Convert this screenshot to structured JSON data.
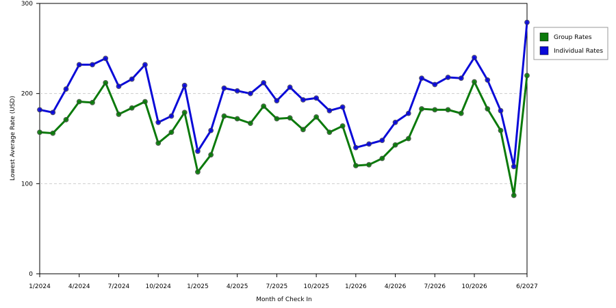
{
  "chart_data": {
    "type": "line",
    "x_label": "Month of Check In",
    "y_label": "Lowest Average Rate (USD)",
    "categories": [
      "1/2024",
      null,
      null,
      "4/2024",
      null,
      null,
      "7/2024",
      null,
      null,
      "10/2024",
      null,
      null,
      "1/2025",
      null,
      null,
      "4/2025",
      null,
      null,
      "7/2025",
      null,
      null,
      "10/2025",
      null,
      null,
      "1/2026",
      null,
      null,
      "4/2026",
      null,
      null,
      "7/2026",
      null,
      null,
      "10/2026",
      null,
      null,
      null,
      "6/2027"
    ],
    "series": [
      {
        "name": "Group Rates",
        "color": "#0b7a0b",
        "values": [
          157,
          156,
          171,
          191,
          190,
          212,
          177,
          184,
          191,
          145,
          157,
          179,
          113,
          132,
          175,
          172,
          167,
          186,
          172,
          173,
          160,
          174,
          157,
          164,
          120,
          121,
          128,
          143,
          150,
          183,
          182,
          182,
          178,
          213,
          183,
          159,
          87,
          220
        ]
      },
      {
        "name": "Individual Rates",
        "color": "#0a0ad8",
        "values": [
          182,
          179,
          205,
          232,
          232,
          239,
          208,
          216,
          232,
          168,
          175,
          209,
          136,
          159,
          206,
          203,
          200,
          212,
          192,
          207,
          193,
          195,
          181,
          185,
          140,
          144,
          148,
          168,
          178,
          217,
          210,
          218,
          217,
          240,
          215,
          181,
          119,
          279
        ]
      }
    ],
    "ylim": [
      0,
      300
    ],
    "yticks": [
      0,
      100,
      200,
      300
    ],
    "grid": true,
    "legend": "right"
  }
}
